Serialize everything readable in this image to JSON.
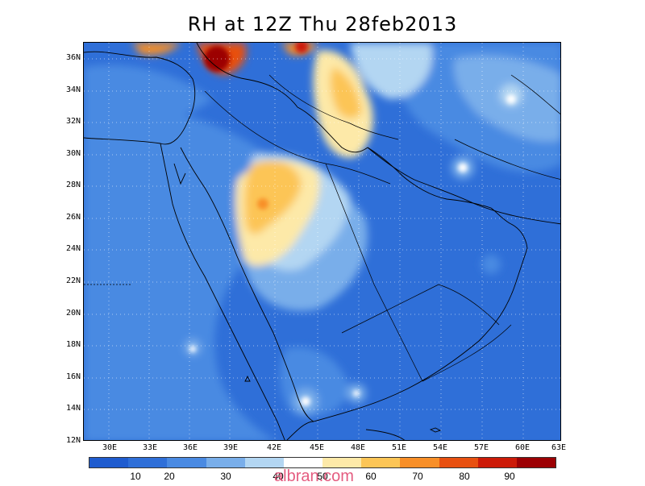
{
  "title": "RH at 12Z Thu 28feb2013",
  "map": {
    "lat_labels": [
      "36N",
      "34N",
      "32N",
      "30N",
      "28N",
      "26N",
      "24N",
      "22N",
      "20N",
      "18N",
      "16N",
      "14N",
      "12N"
    ],
    "lon_labels": [
      "30E",
      "33E",
      "36E",
      "39E",
      "42E",
      "45E",
      "48E",
      "51E",
      "54E",
      "57E",
      "60E",
      "63E"
    ],
    "extent": {
      "lon_min": 27.5,
      "lon_max": 63,
      "lat_min": 12,
      "lat_max": 37
    }
  },
  "colorbar": {
    "labels": [
      "10",
      "20",
      "30",
      "40",
      "50",
      "60",
      "70",
      "80",
      "90"
    ],
    "colors": [
      "#1f5ccf",
      "#2f6fd8",
      "#4a8ae2",
      "#79aeea",
      "#b3d6f2",
      "#ffffff",
      "#fde9a8",
      "#fcc556",
      "#f88f28",
      "#e85010",
      "#cc1a08",
      "#9c0004"
    ]
  },
  "watermark": "albran.com"
}
